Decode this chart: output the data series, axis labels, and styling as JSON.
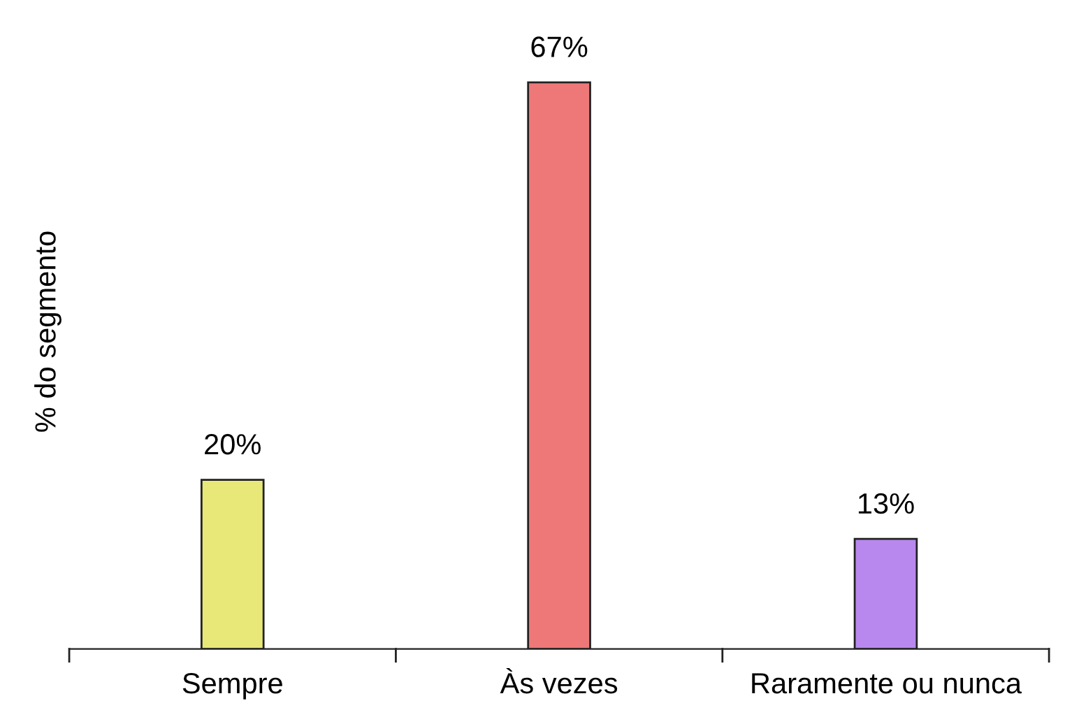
{
  "chart_data": {
    "type": "bar",
    "ylabel": "% do segmento",
    "categories": [
      "Sempre",
      "Às vezes",
      "Raramente ou nunca"
    ],
    "values": [
      20,
      67,
      13
    ],
    "colors": [
      "#e8e878",
      "#ee7878",
      "#b888ee"
    ],
    "value_labels": [
      "20%",
      "67%",
      "13%"
    ],
    "grid": false,
    "legend": false
  }
}
